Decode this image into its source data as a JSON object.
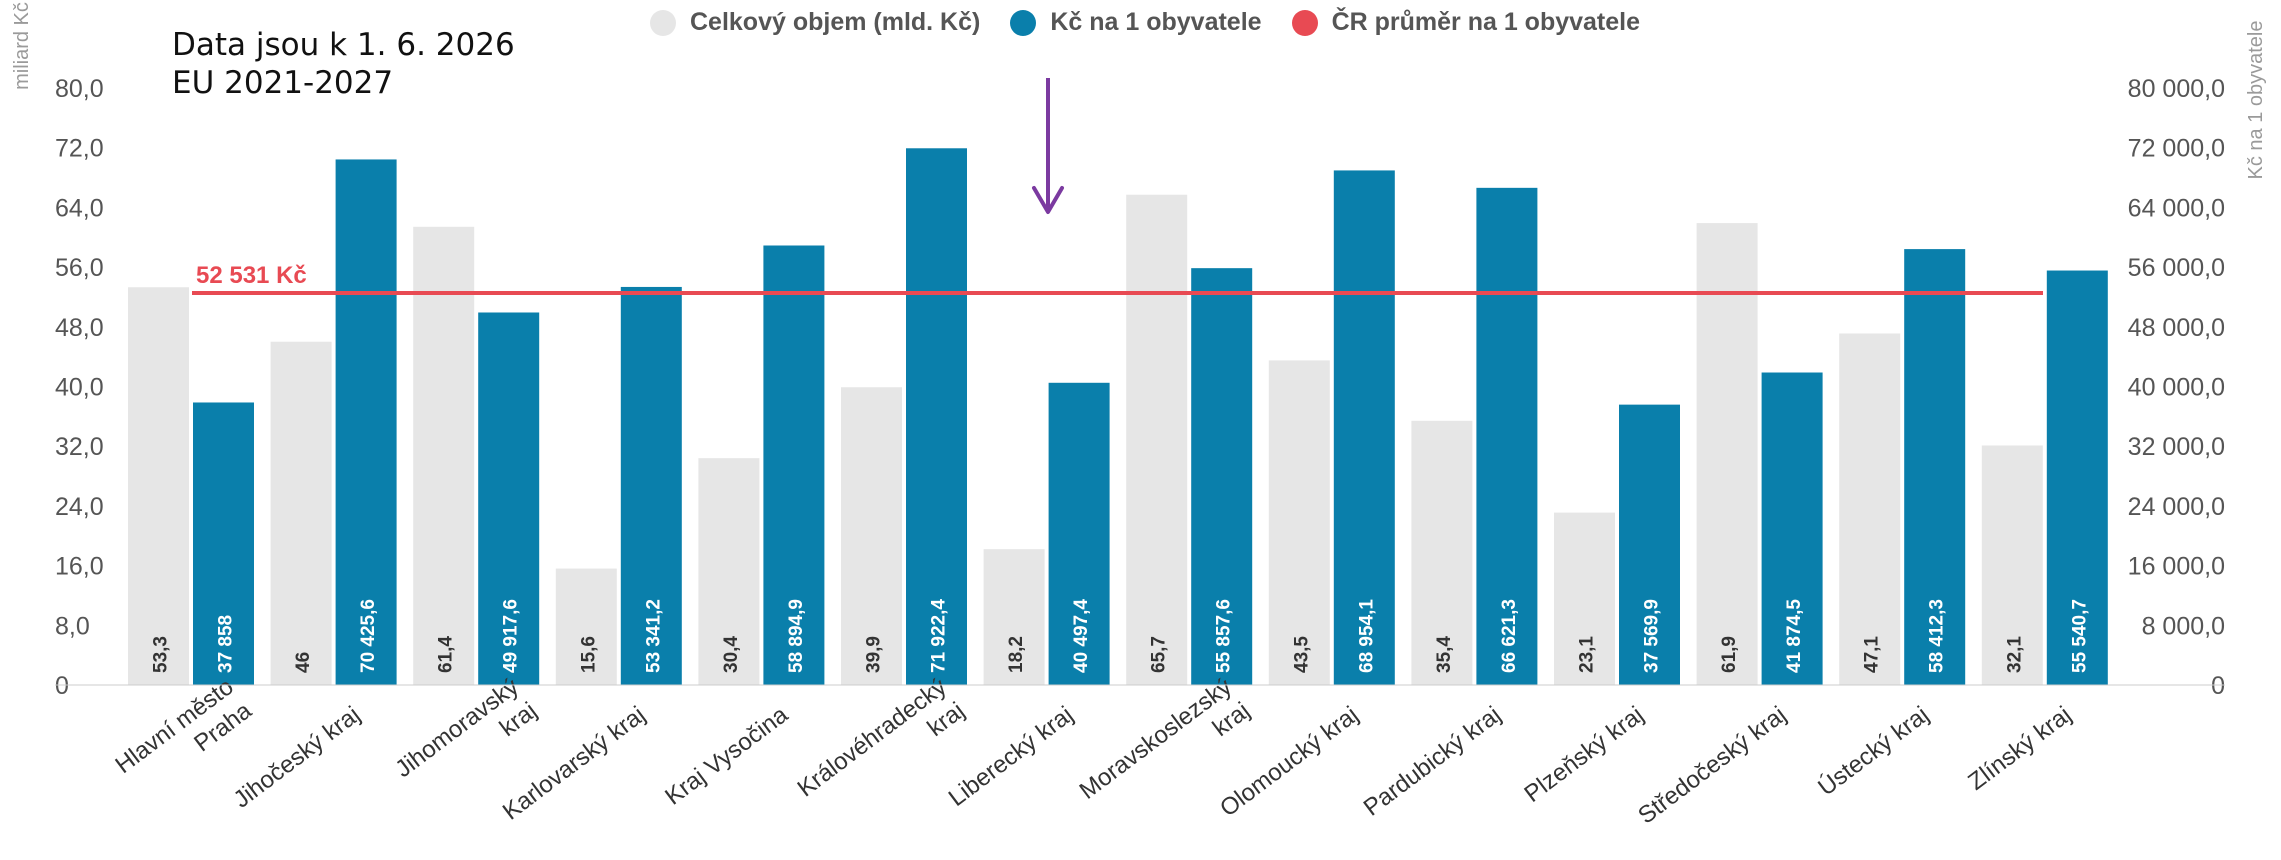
{
  "notes": {
    "line1": "Data jsou k 1. 6. 2026",
    "line2": "EU 2021-2027"
  },
  "legend": [
    {
      "label": "Celkový objem (mld. Kč)",
      "color": "#e6e6e6"
    },
    {
      "label": "Kč na 1 obyvatele",
      "color": "#0a7fab"
    },
    {
      "label": "ČR průměr na 1 obyvatele",
      "color": "#e84a53"
    }
  ],
  "chart_data": {
    "type": "bar",
    "categories": [
      "Hlavní město Praha",
      "Jihočeský kraj",
      "Jihomoravský kraj",
      "Karlovarský kraj",
      "Kraj Vysočina",
      "Královéhradecký kraj",
      "Liberecký kraj",
      "Moravskoslezský kraj",
      "Olomoucký kraj",
      "Pardubický kraj",
      "Plzeňský kraj",
      "Středočeský kraj",
      "Ústecký kraj",
      "Zlínský kraj"
    ],
    "series": [
      {
        "name": "Celkový objem (mld. Kč)",
        "axis": "left",
        "color": "#e6e6e6",
        "values": [
          53.3,
          46,
          61.4,
          15.6,
          30.4,
          39.9,
          18.2,
          65.7,
          43.5,
          35.4,
          23.1,
          61.9,
          47.1,
          32.1
        ],
        "labels": [
          "53,3",
          "46",
          "61,4",
          "15,6",
          "30,4",
          "39,9",
          "18,2",
          "65,7",
          "43,5",
          "35,4",
          "23,1",
          "61,9",
          "47,1",
          "32,1"
        ]
      },
      {
        "name": "Kč na 1 obyvatele",
        "axis": "right",
        "color": "#0a7fab",
        "values": [
          37858,
          70425.6,
          49917.6,
          53341.2,
          58894.9,
          71922.4,
          40497.4,
          55857.6,
          68954.1,
          66621.3,
          37569.9,
          41874.5,
          58412.3,
          55540.7
        ],
        "labels": [
          "37 858",
          "70 425,6",
          "49 917,6",
          "53 341,2",
          "58 894,9",
          "71 922,4",
          "40 497,4",
          "55 857,6",
          "68 954,1",
          "66 621,3",
          "37 569,9",
          "41 874,5",
          "58 412,3",
          "55 540,7"
        ]
      }
    ],
    "reference_line": {
      "name": "ČR průměr na 1 obyvatele",
      "value": 52531,
      "label": "52 531 Kč",
      "color": "#e84a53"
    },
    "ylabel_left": "miliard Kč",
    "ylabel_right": "Kč na 1 obyvatele",
    "ylim_left": [
      0,
      80
    ],
    "ylim_right": [
      0,
      80000
    ],
    "left_ticks": [
      "0",
      "8,0",
      "16,0",
      "24,0",
      "32,0",
      "40,0",
      "48,0",
      "56,0",
      "64,0",
      "72,0",
      "80,0"
    ],
    "right_ticks": [
      "0",
      "8 000,0",
      "16 000,0",
      "24 000,0",
      "32 000,0",
      "40 000,0",
      "48 000,0",
      "56 000,0",
      "64 000,0",
      "72 000,0",
      "80 000,0"
    ],
    "x_labels": [
      [
        "Hlavní město",
        "Praha"
      ],
      [
        "Jihočeský kraj"
      ],
      [
        "Jihomoravský",
        "kraj"
      ],
      [
        "Karlovarský kraj"
      ],
      [
        "Kraj Vysočina"
      ],
      [
        "Královéhradecký",
        "kraj"
      ],
      [
        "Liberecký kraj"
      ],
      [
        "Moravskoslezský",
        "kraj"
      ],
      [
        "Olomoucký kraj"
      ],
      [
        "Pardubický kraj"
      ],
      [
        "Plzeňský kraj"
      ],
      [
        "Středočeský kraj"
      ],
      [
        "Ústecký kraj"
      ],
      [
        "Zlínský kraj"
      ]
    ],
    "grid": false,
    "legend_position": "top"
  }
}
